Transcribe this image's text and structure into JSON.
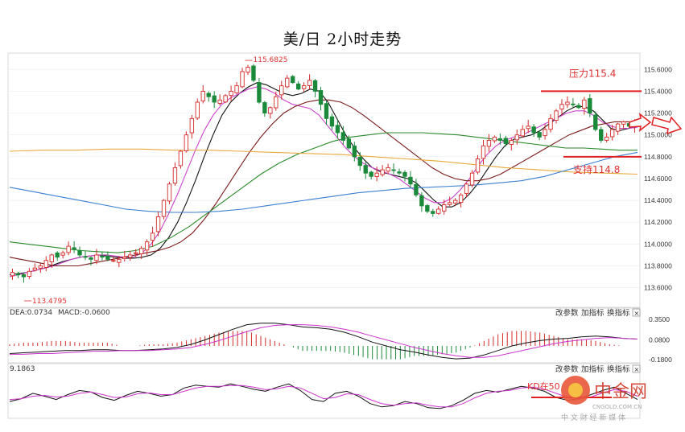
{
  "title": "美/日 2小时走势",
  "chart_data": {
    "type": "candlestick",
    "title": "美/日 2小时走势",
    "ylim": [
      113.45,
      115.72
    ],
    "y_ticks": [
      "115.6000",
      "115.4000",
      "115.2000",
      "115.0000",
      "114.8000",
      "114.6000",
      "114.4000",
      "114.2000",
      "114.0000",
      "113.8000",
      "113.6000"
    ],
    "high_label": "115.6825",
    "low_label": "113.4795",
    "resistance": {
      "label": "压力115.4",
      "value": 115.4
    },
    "support": {
      "label": "支持114.8",
      "value": 114.8
    },
    "close_series": [
      113.74,
      113.72,
      113.7,
      113.75,
      113.78,
      113.8,
      113.85,
      113.9,
      113.88,
      113.92,
      113.98,
      113.95,
      113.9,
      113.88,
      113.86,
      113.9,
      113.88,
      113.86,
      113.85,
      113.86,
      113.88,
      113.9,
      113.92,
      113.96,
      114.02,
      114.1,
      114.25,
      114.4,
      114.55,
      114.7,
      114.85,
      115.0,
      115.15,
      115.3,
      115.4,
      115.35,
      115.3,
      115.32,
      115.36,
      115.4,
      115.45,
      115.58,
      115.62,
      115.5,
      115.3,
      115.2,
      115.25,
      115.35,
      115.45,
      115.52,
      115.48,
      115.42,
      115.45,
      115.5,
      115.4,
      115.28,
      115.15,
      115.08,
      115.02,
      114.95,
      114.88,
      114.8,
      114.72,
      114.65,
      114.62,
      114.65,
      114.68,
      114.7,
      114.68,
      114.65,
      114.62,
      114.55,
      114.45,
      114.35,
      114.3,
      114.28,
      114.32,
      114.36,
      114.38,
      114.4,
      114.45,
      114.55,
      114.65,
      114.78,
      114.9,
      114.95,
      114.98,
      114.95,
      114.92,
      114.95,
      115.0,
      115.05,
      115.08,
      115.02,
      114.98,
      115.05,
      115.15,
      115.22,
      115.28,
      115.3,
      115.28,
      115.25,
      115.32,
      115.2,
      115.05,
      114.95,
      114.98,
      115.05,
      115.1,
      115.12,
      115.08,
      115.1
    ],
    "moving_averages": [
      {
        "color": "#111111",
        "values": [
          113.72,
          113.73,
          113.74,
          113.76,
          113.78,
          113.81,
          113.84,
          113.86,
          113.88,
          113.89,
          113.9,
          113.89,
          113.88,
          113.87,
          113.87,
          113.88,
          113.9,
          113.96,
          114.06,
          114.2,
          114.38,
          114.58,
          114.8,
          115.0,
          115.18,
          115.3,
          115.38,
          115.44,
          115.48,
          115.46,
          115.42,
          115.38,
          115.36,
          115.38,
          115.42,
          115.4,
          115.3,
          115.15,
          115.0,
          114.88,
          114.78,
          114.7,
          114.66,
          114.64,
          114.62,
          114.6,
          114.56,
          114.48,
          114.4,
          114.34,
          114.34,
          114.38,
          114.46,
          114.56,
          114.68,
          114.8,
          114.9,
          114.96,
          114.98,
          115.0,
          115.04,
          115.1,
          115.16,
          115.22,
          115.26,
          115.26,
          115.22,
          115.14,
          115.06,
          115.04,
          115.06,
          115.08
        ]
      },
      {
        "color": "#cc44cc",
        "values": [
          113.7,
          113.72,
          113.74,
          113.76,
          113.78,
          113.8,
          113.83,
          113.86,
          113.88,
          113.89,
          113.9,
          113.9,
          113.89,
          113.88,
          113.88,
          113.92,
          114.0,
          114.12,
          114.28,
          114.46,
          114.66,
          114.86,
          115.04,
          115.18,
          115.28,
          115.34,
          115.38,
          115.42,
          115.44,
          115.42,
          115.38,
          115.32,
          115.28,
          115.26,
          115.24,
          115.18,
          115.08,
          114.98,
          114.88,
          114.8,
          114.74,
          114.7,
          114.67,
          114.64,
          114.6,
          114.54,
          114.48,
          114.42,
          114.38,
          114.38,
          114.42,
          114.5,
          114.6,
          114.72,
          114.82,
          114.9,
          114.95,
          114.98,
          115.0,
          115.04,
          115.08,
          115.12,
          115.16,
          115.2,
          115.22,
          115.22,
          115.18,
          115.12,
          115.08,
          115.06,
          115.06,
          115.07
        ]
      },
      {
        "color": "#7a1a1a",
        "values": [
          113.88,
          113.86,
          113.84,
          113.82,
          113.8,
          113.8,
          113.8,
          113.82,
          113.84,
          113.86,
          113.88,
          113.9,
          113.92,
          113.94,
          113.97,
          114.02,
          114.1,
          114.22,
          114.36,
          114.52,
          114.68,
          114.84,
          114.98,
          115.1,
          115.2,
          115.26,
          115.3,
          115.32,
          115.32,
          115.3,
          115.25,
          115.18,
          115.1,
          115.02,
          114.94,
          114.86,
          114.78,
          114.7,
          114.64,
          114.6,
          114.58,
          114.58,
          114.6,
          114.64,
          114.7,
          114.76,
          114.82,
          114.88,
          114.94,
          115.0,
          115.04,
          115.08,
          115.1,
          115.12,
          115.12,
          115.12
        ]
      },
      {
        "color": "#2a8a2a",
        "values": [
          114.02,
          114.0,
          113.98,
          113.96,
          113.94,
          113.93,
          113.92,
          113.94,
          113.98,
          114.06,
          114.16,
          114.28,
          114.4,
          114.52,
          114.64,
          114.74,
          114.82,
          114.88,
          114.94,
          114.98,
          115.0,
          115.02,
          115.02,
          115.02,
          115.01,
          115.0,
          114.98,
          114.96,
          114.94,
          114.92,
          114.9,
          114.88,
          114.88,
          114.87,
          114.86,
          114.86
        ]
      },
      {
        "color": "#e8a93a",
        "values": [
          114.85,
          114.86,
          114.86,
          114.87,
          114.87,
          114.86,
          114.86,
          114.85,
          114.84,
          114.83,
          114.82,
          114.8,
          114.78,
          114.76,
          114.73,
          114.7,
          114.68,
          114.66,
          114.65,
          114.64
        ]
      },
      {
        "color": "#3a7fd0",
        "values": [
          114.52,
          114.48,
          114.44,
          114.4,
          114.36,
          114.32,
          114.3,
          114.29,
          114.29,
          114.3,
          114.32,
          114.35,
          114.38,
          114.41,
          114.44,
          114.47,
          114.49,
          114.51,
          114.52,
          114.53,
          114.54,
          114.56,
          114.58,
          114.62,
          114.68,
          114.74,
          114.8,
          114.84
        ]
      }
    ],
    "macd": {
      "label_dea": "DEA:0.0734",
      "label_macd": "MACD:-0.0600",
      "y_ticks": [
        "0.3500",
        "0.0800",
        "-0.1800"
      ],
      "dif": [
        -0.1,
        -0.09,
        -0.08,
        -0.07,
        -0.06,
        -0.06,
        -0.05,
        -0.05,
        -0.06,
        -0.06,
        -0.05,
        -0.04,
        -0.02,
        0.02,
        0.08,
        0.15,
        0.22,
        0.28,
        0.3,
        0.3,
        0.28,
        0.25,
        0.24,
        0.22,
        0.18,
        0.12,
        0.05,
        0.0,
        -0.05,
        -0.08,
        -0.12,
        -0.15,
        -0.17,
        -0.16,
        -0.12,
        -0.06,
        0.0,
        0.04,
        0.07,
        0.09,
        0.1,
        0.12,
        0.13,
        0.12,
        0.1,
        0.09
      ],
      "dea": [
        -0.11,
        -0.11,
        -0.1,
        -0.1,
        -0.09,
        -0.08,
        -0.07,
        -0.07,
        -0.06,
        -0.06,
        -0.06,
        -0.05,
        -0.04,
        -0.02,
        0.02,
        0.07,
        0.13,
        0.19,
        0.24,
        0.27,
        0.28,
        0.28,
        0.27,
        0.25,
        0.22,
        0.18,
        0.13,
        0.08,
        0.03,
        -0.02,
        -0.06,
        -0.1,
        -0.13,
        -0.15,
        -0.15,
        -0.13,
        -0.09,
        -0.05,
        -0.01,
        0.03,
        0.06,
        0.08,
        0.1,
        0.11,
        0.1,
        0.09
      ]
    },
    "kdj": {
      "label": "9.1863",
      "k": [
        0.35,
        0.42,
        0.55,
        0.48,
        0.4,
        0.52,
        0.62,
        0.58,
        0.45,
        0.38,
        0.5,
        0.6,
        0.55,
        0.48,
        0.52,
        0.68,
        0.75,
        0.72,
        0.7,
        0.78,
        0.72,
        0.65,
        0.6,
        0.7,
        0.78,
        0.62,
        0.4,
        0.35,
        0.55,
        0.6,
        0.48,
        0.3,
        0.22,
        0.25,
        0.35,
        0.3,
        0.2,
        0.18,
        0.25,
        0.38,
        0.55,
        0.62,
        0.58,
        0.65,
        0.72,
        0.68,
        0.6,
        0.45,
        0.38,
        0.42,
        0.52,
        0.62,
        0.7,
        0.55,
        0.4
      ],
      "d": [
        0.4,
        0.42,
        0.48,
        0.5,
        0.46,
        0.48,
        0.55,
        0.58,
        0.52,
        0.45,
        0.46,
        0.54,
        0.56,
        0.52,
        0.52,
        0.6,
        0.68,
        0.72,
        0.72,
        0.74,
        0.74,
        0.7,
        0.64,
        0.66,
        0.72,
        0.68,
        0.55,
        0.42,
        0.45,
        0.54,
        0.52,
        0.4,
        0.3,
        0.26,
        0.3,
        0.32,
        0.26,
        0.22,
        0.22,
        0.3,
        0.44,
        0.55,
        0.6,
        0.62,
        0.68,
        0.7,
        0.65,
        0.55,
        0.45,
        0.42,
        0.46,
        0.56,
        0.64,
        0.6,
        0.48
      ],
      "annotation": "KD在50"
    }
  },
  "toolbar": {
    "params": "改参数",
    "add": "加指标",
    "switch": "换指标",
    "close": "×"
  },
  "watermark": {
    "logo_text": "中金网",
    "domain": "CNGOLD.COM.CN",
    "tagline": "中 文 财 经 新 媒 体"
  }
}
